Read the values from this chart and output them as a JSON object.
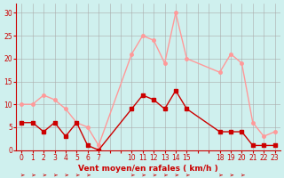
{
  "hours": [
    0,
    1,
    2,
    3,
    4,
    5,
    6,
    7,
    10,
    11,
    12,
    13,
    14,
    15,
    18,
    19,
    20,
    21,
    22,
    23
  ],
  "vent_moyen": [
    6,
    6,
    4,
    6,
    3,
    6,
    1,
    0,
    9,
    12,
    11,
    9,
    13,
    9,
    4,
    4,
    4,
    1,
    1,
    1
  ],
  "en_rafales": [
    10,
    10,
    12,
    11,
    9,
    6,
    5,
    1,
    21,
    25,
    24,
    19,
    30,
    20,
    17,
    21,
    19,
    6,
    3,
    4
  ],
  "color_moyen": "#cc0000",
  "color_rafales": "#ff9999",
  "bg_color": "#cff0ee",
  "grid_color": "#aaaaaa",
  "xlabel": "Vent moyen/en rafales ( km/h )",
  "xlabel_color": "#cc0000",
  "tick_color": "#cc0000",
  "ylim": [
    0,
    32
  ],
  "yticks": [
    0,
    5,
    10,
    15,
    20,
    25,
    30
  ],
  "show_xticks": [
    0,
    1,
    2,
    3,
    4,
    5,
    6,
    7,
    10,
    11,
    12,
    13,
    14,
    15,
    18,
    19,
    20,
    21,
    22,
    23
  ],
  "xlim": [
    -0.5,
    23.5
  ]
}
